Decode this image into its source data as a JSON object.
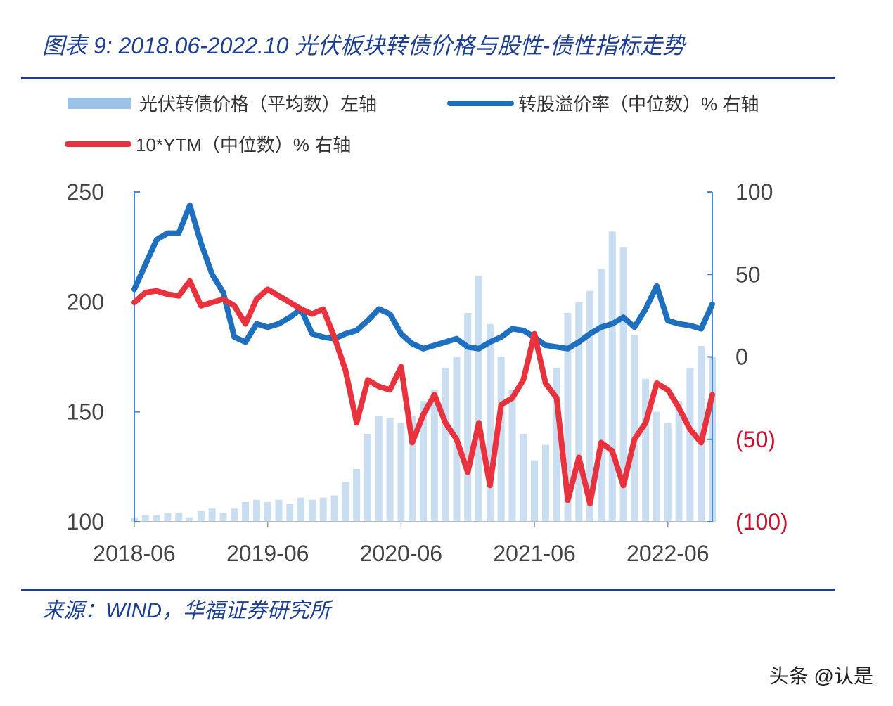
{
  "title": "图表 9:  2018.06-2022.10 光伏板块转债价格与股性-债性指标走势",
  "source": "来源：WIND，华福证券研究所",
  "watermark": "头条 @认是",
  "colors": {
    "bars": "#9cc3e6",
    "premium": "#1f6fbf",
    "ytm": "#e8333f",
    "accent": "#1c3f94",
    "axis": "#4a86c8"
  },
  "chart_data": {
    "type": "bar+line",
    "legend_placement": "top",
    "grid": false,
    "x": [
      "2018-06",
      "2018-07",
      "2018-08",
      "2018-09",
      "2018-10",
      "2018-11",
      "2018-12",
      "2019-01",
      "2019-02",
      "2019-03",
      "2019-04",
      "2019-05",
      "2019-06",
      "2019-07",
      "2019-08",
      "2019-09",
      "2019-10",
      "2019-11",
      "2019-12",
      "2020-01",
      "2020-02",
      "2020-03",
      "2020-04",
      "2020-05",
      "2020-06",
      "2020-07",
      "2020-08",
      "2020-09",
      "2020-10",
      "2020-11",
      "2020-12",
      "2021-01",
      "2021-02",
      "2021-03",
      "2021-04",
      "2021-05",
      "2021-06",
      "2021-07",
      "2021-08",
      "2021-09",
      "2021-10",
      "2021-11",
      "2021-12",
      "2022-01",
      "2022-02",
      "2022-03",
      "2022-04",
      "2022-05",
      "2022-06",
      "2022-07",
      "2022-08",
      "2022-09",
      "2022-10"
    ],
    "x_ticks": [
      "2018-06",
      "2019-06",
      "2020-06",
      "2021-06",
      "2022-06"
    ],
    "y_left": {
      "lim": [
        100,
        250
      ],
      "ticks": [
        "250",
        "200",
        "150",
        "100"
      ]
    },
    "y_right": {
      "lim": [
        -100,
        100
      ],
      "ticks": [
        "100",
        "50",
        "0",
        "(50)",
        "(100)"
      ]
    },
    "series": [
      {
        "name": "光伏转债价格（平均数）左轴",
        "type": "bar",
        "axis": "left",
        "values": [
          102,
          103,
          103,
          104,
          104,
          102,
          105,
          106,
          104,
          106,
          109,
          110,
          109,
          110,
          108,
          111,
          110,
          111,
          112,
          118,
          124,
          140,
          148,
          147,
          145,
          148,
          155,
          160,
          170,
          175,
          195,
          212,
          190,
          175,
          160,
          140,
          128,
          135,
          170,
          195,
          200,
          205,
          215,
          232,
          225,
          185,
          165,
          150,
          145,
          155,
          170,
          180,
          175
        ]
      },
      {
        "name": "转股溢价率（中位数）% 右轴",
        "type": "line",
        "axis": "right",
        "values": [
          41,
          56,
          71,
          75,
          75,
          92,
          69,
          50,
          39,
          12,
          9,
          20,
          18,
          20,
          24,
          29,
          14,
          12,
          11,
          14,
          16,
          22,
          29,
          26,
          14,
          8,
          5,
          7,
          9,
          11,
          6,
          5,
          9,
          12,
          17,
          16,
          12,
          7,
          6,
          5,
          9,
          14,
          18,
          20,
          24,
          18,
          29,
          43,
          22,
          20,
          19,
          17,
          32
        ]
      },
      {
        "name": "10*YTM（中位数）% 右轴",
        "type": "line",
        "axis": "right",
        "values": [
          33,
          39,
          40,
          38,
          37,
          46,
          31,
          33,
          35,
          31,
          20,
          35,
          41,
          37,
          33,
          29,
          26,
          29,
          12,
          -8,
          -40,
          -14,
          -18,
          -20,
          -6,
          -52,
          -35,
          -23,
          -40,
          -50,
          -70,
          -40,
          -78,
          -29,
          -25,
          -14,
          14,
          -16,
          -25,
          -87,
          -61,
          -89,
          -52,
          -57,
          -78,
          -50,
          -40,
          -16,
          -20,
          -31,
          -44,
          -52,
          -23
        ]
      }
    ]
  }
}
